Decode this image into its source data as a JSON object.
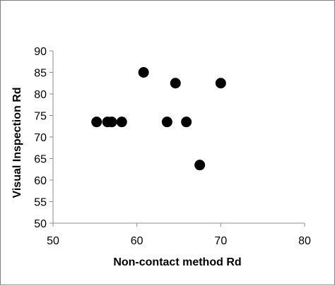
{
  "chart_data": {
    "type": "scatter",
    "title": "",
    "xlabel": "Non-contact method Rd",
    "ylabel": "Visual Inspection Rd",
    "xlim": [
      50,
      80
    ],
    "ylim": [
      50,
      90
    ],
    "x_ticks": [
      "50",
      "60",
      "70",
      "80"
    ],
    "y_ticks": [
      "50",
      "55",
      "60",
      "65",
      "70",
      "75",
      "80",
      "85",
      "90"
    ],
    "grid": false,
    "legend": "none",
    "marker_color": "#000000",
    "series": [
      {
        "points": [
          {
            "x": 55.2,
            "y": 73.5
          },
          {
            "x": 56.5,
            "y": 73.5
          },
          {
            "x": 57.0,
            "y": 73.5
          },
          {
            "x": 58.2,
            "y": 73.5
          },
          {
            "x": 60.8,
            "y": 85.0
          },
          {
            "x": 63.6,
            "y": 73.5
          },
          {
            "x": 64.6,
            "y": 82.5
          },
          {
            "x": 65.9,
            "y": 73.5
          },
          {
            "x": 67.5,
            "y": 63.5
          },
          {
            "x": 70.0,
            "y": 82.5
          }
        ]
      }
    ]
  }
}
